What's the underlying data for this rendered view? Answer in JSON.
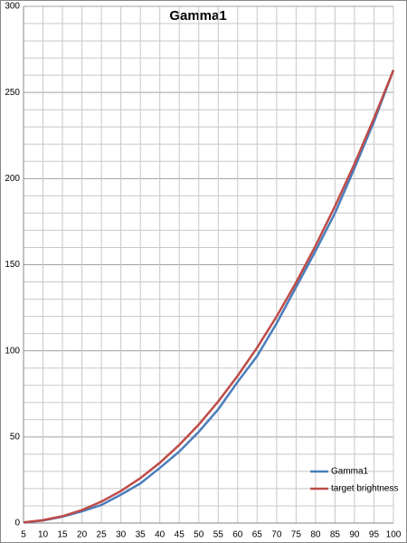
{
  "chart_data": {
    "type": "line",
    "title": "Gamma1",
    "categories": [
      "5",
      "10",
      "15",
      "20",
      "25",
      "30",
      "35",
      "40",
      "45",
      "50",
      "55",
      "60",
      "65",
      "70",
      "75",
      "80",
      "85",
      "90",
      "95",
      "100"
    ],
    "series": [
      {
        "name": "Gamma1",
        "color": "#4a7ebb",
        "values": [
          0.3,
          1.5,
          3.7,
          6.8,
          10.5,
          16.5,
          23,
          32,
          41.5,
          53,
          66,
          82,
          97,
          116,
          137,
          158,
          180,
          206,
          233,
          263
        ]
      },
      {
        "name": "target brightness",
        "color": "#be4b48",
        "values": [
          0.4,
          1.7,
          4,
          7.6,
          12.5,
          18.6,
          26.1,
          35,
          45.4,
          57.2,
          70.6,
          85.5,
          101.9,
          119.9,
          139.7,
          161,
          184,
          208.6,
          235,
          263
        ]
      }
    ],
    "ylim": [
      0,
      300
    ],
    "yticks": [
      0,
      50,
      100,
      150,
      200,
      250,
      300
    ],
    "y_minor_ticks": [
      10,
      20,
      30,
      40,
      60,
      70,
      80,
      90,
      110,
      120,
      130,
      140,
      160,
      170,
      180,
      190,
      210,
      220,
      230,
      240,
      260,
      270,
      280,
      290
    ],
    "grid": true,
    "legend": "lower-right"
  }
}
